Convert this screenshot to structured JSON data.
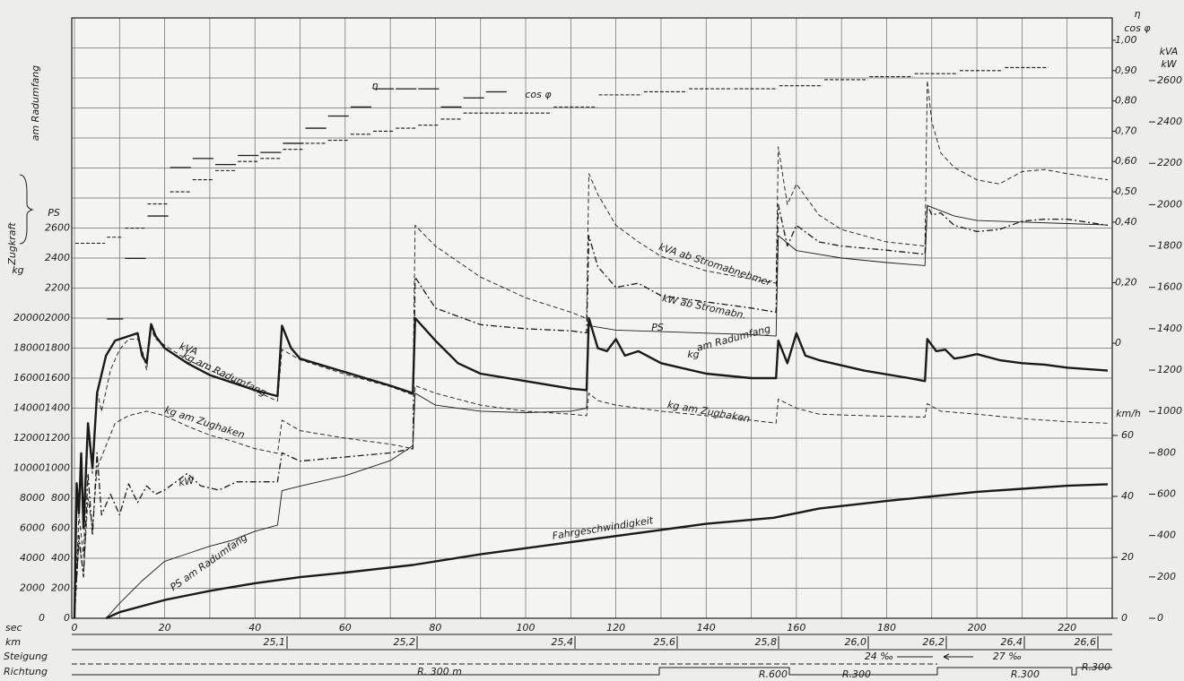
{
  "chart_data": {
    "type": "line",
    "x_label": "sec",
    "xlim": [
      0,
      230
    ],
    "xticks": [
      0,
      20,
      40,
      60,
      80,
      100,
      120,
      140,
      160,
      180,
      200,
      220
    ],
    "xgrid": [
      0,
      10,
      20,
      30,
      40,
      50,
      60,
      70,
      80,
      90,
      100,
      110,
      120,
      130,
      140,
      150,
      160,
      170,
      180,
      190,
      200,
      210,
      220,
      230
    ],
    "left_title": "Zugkraft",
    "left_subtitle": "am Radumfang",
    "axes": {
      "kg": {
        "label": "kg",
        "lim": [
          0,
          40000
        ],
        "ticks": [
          0,
          2000,
          4000,
          6000,
          8000,
          10000,
          12000,
          14000,
          16000,
          18000,
          20000
        ]
      },
      "ps": {
        "label": "PS",
        "lim": [
          0,
          4000
        ],
        "ticks": [
          0,
          200,
          400,
          600,
          800,
          1000,
          1200,
          1400,
          1600,
          1800,
          2000,
          2200,
          2400,
          2600
        ],
        "grid": [
          0,
          200,
          400,
          600,
          800,
          1000,
          1200,
          1400,
          1600,
          1800,
          2000,
          2200,
          2400,
          2600,
          2800,
          3000,
          3200,
          3400,
          3600,
          3800,
          4000
        ]
      },
      "eta": {
        "label": "η",
        "label2": "cos φ",
        "lim": [
          -0.908,
          1.074
        ],
        "ticks": [
          {
            "value": 1.0,
            "label": "1,00"
          },
          {
            "value": 0.9,
            "label": "0,90"
          },
          {
            "value": 0.8,
            "label": "0,80"
          },
          {
            "value": 0.7,
            "label": "0,70"
          },
          {
            "value": 0.6,
            "label": "0,60"
          },
          {
            "value": 0.5,
            "label": "0,50"
          },
          {
            "value": 0.4,
            "label": "0,40"
          },
          {
            "value": 0.2,
            "label": "0,20"
          },
          0
        ]
      },
      "kva": {
        "label": "kVA",
        "label2": "kW",
        "lim": [
          0,
          2903
        ],
        "ticks": [
          0,
          200,
          400,
          600,
          800,
          1000,
          1200,
          1400,
          1600,
          1800,
          2000,
          2200,
          2400,
          2600
        ]
      },
      "kmh": {
        "label": "km/h",
        "lim": [
          0,
          197
        ],
        "ticks": [
          0,
          20,
          40,
          60
        ]
      }
    },
    "series": [
      {
        "name": "kVA ab Stromabnehmer",
        "axis": "kva",
        "style": "dashed",
        "color": "#1a1a1a",
        "x": [
          0,
          1,
          2,
          3,
          4,
          5,
          6,
          8,
          10,
          12,
          14,
          15,
          16,
          17,
          18,
          20,
          25,
          30,
          35,
          40,
          45,
          46,
          50,
          60,
          70,
          75,
          75.5,
          80,
          90,
          100,
          110,
          113.5,
          114,
          116,
          120,
          125,
          130,
          140,
          150,
          155.5,
          156,
          158,
          160,
          165,
          170,
          180,
          188.5,
          189,
          190,
          192,
          195,
          200,
          205,
          210,
          215,
          220,
          229
        ],
        "values": [
          0,
          500,
          300,
          900,
          700,
          1100,
          1000,
          1200,
          1300,
          1350,
          1350,
          1300,
          1200,
          1400,
          1350,
          1320,
          1250,
          1200,
          1150,
          1100,
          1050,
          1300,
          1250,
          1180,
          1120,
          1080,
          1900,
          1800,
          1650,
          1550,
          1480,
          1450,
          2150,
          2050,
          1900,
          1820,
          1750,
          1680,
          1640,
          1620,
          2280,
          2000,
          2100,
          1950,
          1880,
          1820,
          1800,
          2600,
          2400,
          2250,
          2180,
          2120,
          2100,
          2160,
          2170,
          2150,
          2120
        ]
      },
      {
        "name": "kW ab Stromabn.",
        "axis": "kva",
        "style": "dashdot",
        "color": "#1a1a1a",
        "x": [
          0,
          1,
          2,
          3,
          4,
          5,
          6,
          8,
          10,
          12,
          14,
          16,
          18,
          20,
          25,
          28,
          32,
          36,
          40,
          45,
          46,
          50,
          60,
          70,
          75,
          75.5,
          80,
          90,
          100,
          110,
          113.5,
          114,
          116,
          120,
          125,
          130,
          140,
          150,
          155.5,
          156,
          158,
          160,
          165,
          170,
          180,
          188.5,
          189,
          190,
          192,
          195,
          200,
          205,
          210,
          215,
          220,
          229
        ],
        "values": [
          0,
          400,
          200,
          700,
          400,
          800,
          500,
          600,
          500,
          650,
          560,
          640,
          600,
          620,
          700,
          640,
          620,
          660,
          660,
          660,
          800,
          760,
          780,
          800,
          820,
          1650,
          1500,
          1420,
          1400,
          1390,
          1380,
          1850,
          1700,
          1600,
          1620,
          1560,
          1530,
          1500,
          1480,
          2000,
          1800,
          1900,
          1820,
          1800,
          1780,
          1760,
          2000,
          1950,
          1960,
          1900,
          1870,
          1880,
          1920,
          1930,
          1930,
          1900
        ]
      },
      {
        "name": "PS am Radumfang",
        "axis": "ps",
        "style": "thin",
        "color": "#1a1a1a",
        "x": [
          7,
          10,
          15,
          20,
          25,
          30,
          35,
          40,
          45,
          46,
          50,
          60,
          70,
          75,
          75.5,
          80,
          90,
          100,
          110,
          113.5,
          114,
          120,
          130,
          140,
          150,
          155.5,
          156,
          160,
          170,
          180,
          188.5,
          189,
          195,
          200,
          210,
          220,
          229
        ],
        "values": [
          0,
          100,
          250,
          380,
          430,
          480,
          520,
          580,
          620,
          850,
          880,
          950,
          1050,
          1150,
          1500,
          1420,
          1380,
          1370,
          1380,
          1400,
          1950,
          1920,
          1910,
          1900,
          1890,
          1880,
          2550,
          2450,
          2400,
          2370,
          2350,
          2750,
          2680,
          2650,
          2640,
          2630,
          2620
        ]
      },
      {
        "name": "kg am Radumfang",
        "axis": "kg",
        "style": "thick",
        "color": "#1a1a1a",
        "x": [
          0,
          0.5,
          1,
          1.5,
          2,
          3,
          4,
          5,
          7,
          9,
          12,
          14,
          15,
          16,
          17,
          18,
          20,
          25,
          30,
          35,
          40,
          45,
          46,
          48,
          50,
          60,
          70,
          75,
          75.5,
          80,
          85,
          90,
          100,
          110,
          113.5,
          114,
          116,
          118,
          120,
          122,
          125,
          130,
          140,
          150,
          155.5,
          156,
          158,
          160,
          162,
          165,
          175,
          185,
          188.5,
          189,
          191,
          193,
          195,
          197,
          200,
          205,
          210,
          215,
          220,
          229
        ],
        "values": [
          0,
          9000,
          7000,
          11000,
          6000,
          13000,
          10000,
          15000,
          17500,
          18500,
          18800,
          19000,
          17500,
          17000,
          19600,
          18800,
          18000,
          17000,
          16200,
          15700,
          15200,
          14800,
          19500,
          18000,
          17300,
          16400,
          15500,
          15000,
          20000,
          18500,
          17000,
          16300,
          15800,
          15300,
          15200,
          20000,
          18000,
          17800,
          18600,
          17500,
          17800,
          17000,
          16300,
          16000,
          16000,
          18500,
          17000,
          19000,
          17500,
          17200,
          16500,
          16000,
          15800,
          18600,
          17800,
          17900,
          17300,
          17400,
          17600,
          17200,
          17000,
          16900,
          16700,
          16500
        ]
      },
      {
        "name": "kg am Zughaken",
        "axis": "kg",
        "style": "dashed",
        "color": "#1a1a1a",
        "x": [
          0,
          1,
          2,
          3,
          4,
          5,
          7,
          9,
          12,
          16,
          20,
          25,
          30,
          35,
          40,
          45,
          46,
          50,
          60,
          70,
          75,
          75.5,
          80,
          90,
          100,
          110,
          113.5,
          114,
          116,
          120,
          130,
          140,
          150,
          155.5,
          156,
          160,
          165,
          175,
          188.5,
          189,
          192,
          200,
          210,
          220,
          229
        ],
        "values": [
          0,
          5000,
          3000,
          8000,
          6000,
          10000,
          11500,
          13000,
          13500,
          13800,
          13500,
          12800,
          12200,
          11800,
          11300,
          11000,
          13200,
          12500,
          12000,
          11600,
          11300,
          15500,
          15000,
          14200,
          13800,
          13600,
          13500,
          15000,
          14500,
          14200,
          13800,
          13500,
          13200,
          13000,
          14600,
          14000,
          13600,
          13500,
          13400,
          14300,
          13800,
          13600,
          13300,
          13100,
          13000
        ]
      },
      {
        "name": "Fahrgeschwindigkeit",
        "axis": "kmh",
        "style": "thick",
        "color": "#1a1a1a",
        "x": [
          7,
          10,
          15,
          20,
          25,
          30,
          40,
          50,
          60,
          75,
          90,
          100,
          110,
          125,
          140,
          155,
          165,
          180,
          190,
          200,
          210,
          220,
          229
        ],
        "values": [
          0,
          2,
          4,
          6,
          7.5,
          9,
          11.5,
          13.5,
          15,
          17.5,
          21,
          23,
          25,
          28,
          31,
          33,
          36,
          38.5,
          40,
          41.5,
          42.5,
          43.5,
          44
        ]
      },
      {
        "name": "η",
        "axis": "eta",
        "style": "step",
        "color": "#1a1a1a",
        "x": [
          7,
          11,
          16,
          21,
          26,
          31,
          36,
          41,
          46,
          51,
          56,
          61,
          66,
          71,
          76,
          81,
          86,
          91
        ],
        "values": [
          0.08,
          0.28,
          0.42,
          0.58,
          0.61,
          0.59,
          0.62,
          0.63,
          0.66,
          0.71,
          0.75,
          0.78,
          0.84,
          0.84,
          0.84,
          0.78,
          0.81,
          0.83
        ]
      },
      {
        "name": "cos φ",
        "axis": "eta",
        "style": "stepdashed",
        "color": "#1a1a1a",
        "x": [
          0,
          7,
          11,
          16,
          21,
          26,
          31,
          36,
          41,
          46,
          51,
          56,
          61,
          66,
          71,
          76,
          81,
          86,
          96,
          106,
          116,
          126,
          136,
          146,
          156,
          166,
          176,
          186,
          196,
          206
        ],
        "values": [
          0.33,
          0.35,
          0.38,
          0.46,
          0.5,
          0.54,
          0.57,
          0.6,
          0.61,
          0.64,
          0.66,
          0.67,
          0.69,
          0.7,
          0.71,
          0.72,
          0.74,
          0.76,
          0.76,
          0.78,
          0.82,
          0.83,
          0.84,
          0.84,
          0.85,
          0.87,
          0.88,
          0.89,
          0.9,
          0.91
        ]
      }
    ],
    "annotations": [
      "kVA",
      "kW",
      "PS",
      "kg",
      "am Radumfang",
      "kg am Zughaken"
    ],
    "km_label": "km",
    "km_ticks": [
      "25,1",
      "25,2",
      "25,4",
      "25,6",
      "25,8",
      "26,0",
      "26,2",
      "26,4",
      "26,6"
    ],
    "steigung": {
      "label": "Steigung",
      "values": [
        "24 ‰",
        "27 ‰"
      ]
    },
    "richtung": {
      "label": "Richtung",
      "values": [
        "R. 300 m",
        "R.600",
        "R.300",
        "R.300",
        "R.300"
      ]
    }
  }
}
